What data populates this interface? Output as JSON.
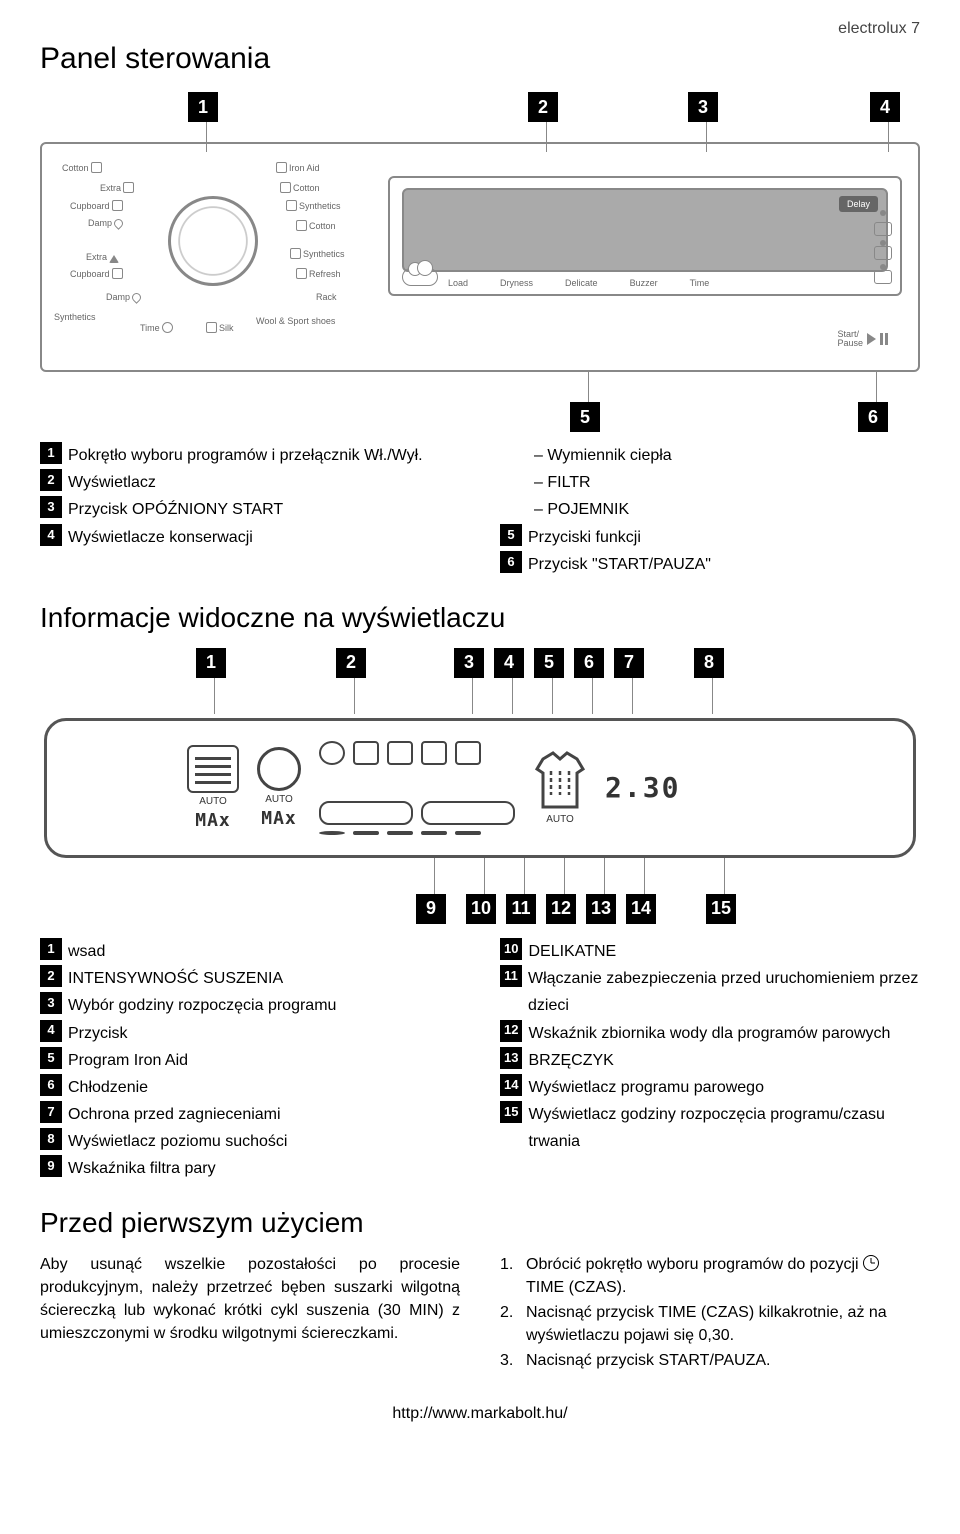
{
  "header_right": "electrolux  7",
  "title": "Panel sterowania",
  "panel": {
    "callouts_top": [
      "1",
      "2",
      "3",
      "4"
    ],
    "callouts_bottom": [
      "5",
      "6"
    ],
    "dial_labels": {
      "top_left": "Cotton",
      "extra_l1": "Extra",
      "cupboard_l1": "Cupboard",
      "damp_l1": "Damp",
      "extra_l2": "Extra",
      "cupboard_l2": "Cupboard",
      "damp_l2": "Damp",
      "synthetics_bl": "Synthetics",
      "time": "Time",
      "silk": "Silk",
      "wool": "Wool & Sport shoes",
      "rack": "Rack",
      "refresh": "Refresh",
      "synthetics_r": "Synthetics",
      "cotton_r2": "Cotton",
      "synthetics_r2": "Synthetics",
      "cotton_r1": "Cotton",
      "iron": "Iron Aid"
    },
    "lcd": {
      "delay": "Delay",
      "labels": [
        "Load",
        "Dryness",
        "Delicate",
        "Buzzer",
        "Time"
      ],
      "start_pause": "Start/\nPause"
    }
  },
  "list1_left": [
    {
      "n": "1",
      "t": "Pokrętło wyboru programów i przełącznik Wł./Wył."
    },
    {
      "n": "2",
      "t": "Wyświetlacz"
    },
    {
      "n": "3",
      "t": "Przycisk OPÓŹNIONY START"
    },
    {
      "n": "4",
      "t": "Wyświetlacze konserwacji"
    }
  ],
  "list1_right_dash": [
    "Wymiennik ciepła",
    "FILTR",
    "POJEMNIK"
  ],
  "list1_right": [
    {
      "n": "5",
      "t": "Przyciski funkcji"
    },
    {
      "n": "6",
      "t": "Przycisk \"START/PAUZA\""
    }
  ],
  "subtitle1": "Informacje widoczne na wyświetlaczu",
  "disp_top_nums": [
    "1",
    "2",
    "3",
    "4",
    "5",
    "6",
    "7",
    "8"
  ],
  "disp_bot_nums": [
    "9",
    "10",
    "11",
    "12",
    "13",
    "14",
    "15"
  ],
  "disp": {
    "auto": "AUTO",
    "max": "MAx",
    "digits": "2.30"
  },
  "list2_left": [
    {
      "n": "1",
      "t": "wsad"
    },
    {
      "n": "2",
      "t": "INTENSYWNOŚĆ SUSZENIA"
    },
    {
      "n": "3",
      "t": "Wybór godziny rozpoczęcia programu"
    },
    {
      "n": "4",
      "t": "Przycisk"
    },
    {
      "n": "5",
      "t": "Program Iron Aid"
    },
    {
      "n": "6",
      "t": "Chłodzenie"
    },
    {
      "n": "7",
      "t": "Ochrona przed zagnieceniami"
    },
    {
      "n": "8",
      "t": "Wyświetlacz poziomu suchości"
    },
    {
      "n": "9",
      "t": "Wskaźnika filtra pary"
    }
  ],
  "list2_right": [
    {
      "n": "10",
      "t": "DELIKATNE"
    },
    {
      "n": "11",
      "t": "Włączanie zabezpieczenia przed uruchomieniem przez dzieci"
    },
    {
      "n": "12",
      "t": "Wskaźnik zbiornika wody dla programów parowych"
    },
    {
      "n": "13",
      "t": "BRZĘCZYK"
    },
    {
      "n": "14",
      "t": "Wyświetlacz programu parowego"
    },
    {
      "n": "15",
      "t": "Wyświetlacz godziny rozpoczęcia programu/czasu trwania"
    }
  ],
  "subtitle2": "Przed pierwszym użyciem",
  "before_left": "Aby usunąć wszelkie pozostałości po procesie produkcyjnym, należy przetrzeć bęben suszarki wilgotną ściereczką lub wykonać krótki cykl suszenia (30 MIN) z umieszczonymi w środku wilgotnymi ściereczkami.",
  "before_right": [
    {
      "n": "1.",
      "t": "Obrócić pokrętło wyboru programów do pozycji ⊙ TIME (CZAS).",
      "clock": true
    },
    {
      "n": "2.",
      "t": "Nacisnąć przycisk TIME (CZAS) kilkakrotnie, aż na wyświetlaczu pojawi się 0,30."
    },
    {
      "n": "3.",
      "t": "Nacisnąć przycisk START/PAUZA."
    }
  ],
  "footer": "http://www.markabolt.hu/"
}
